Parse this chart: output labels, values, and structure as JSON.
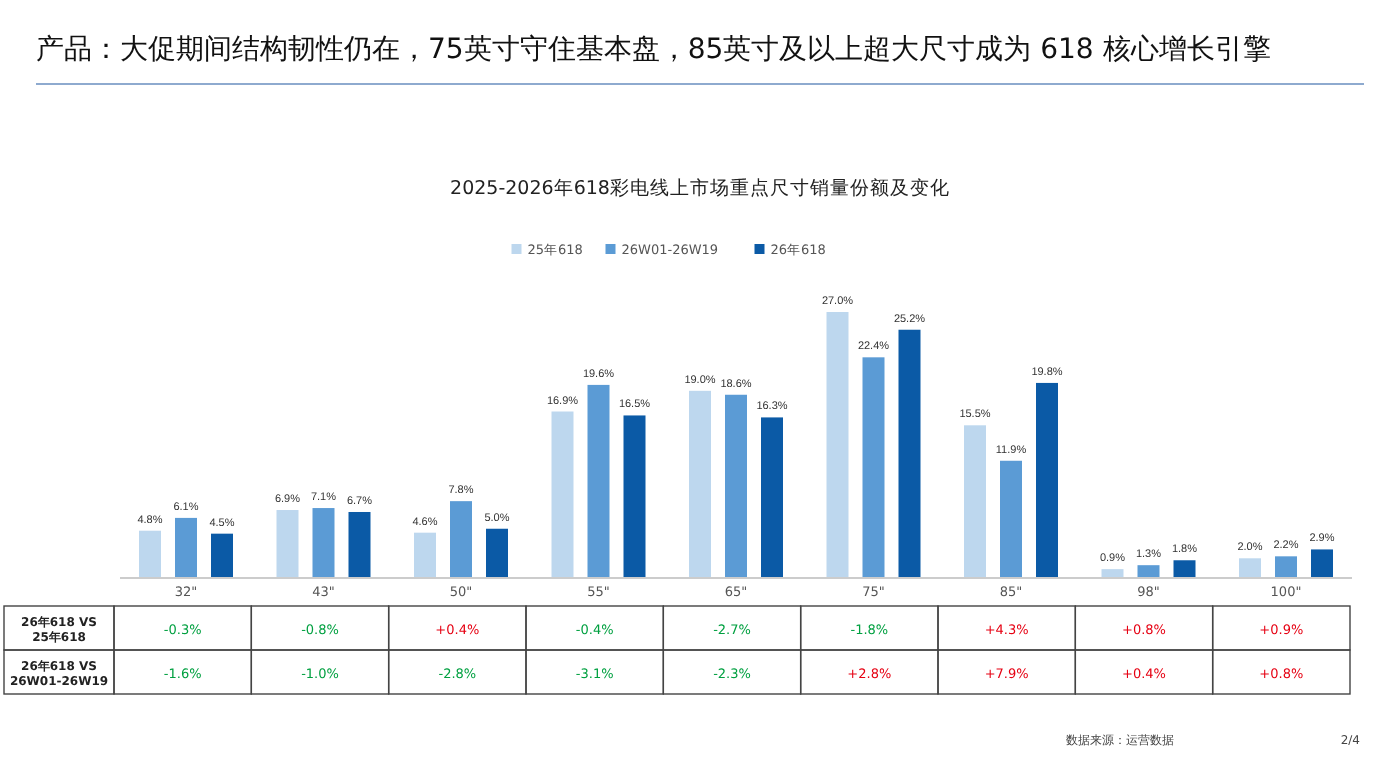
{
  "chart_data": {
    "type": "bar",
    "title": "产品：大促期间结构韧性仍在，75英寸守住基本盘，85英寸及以上超大尺寸成为 618 核心增长引擎",
    "subtitle": "2025-2026年618彩电线上市场重点尺寸销量份额及变化",
    "categories": [
      "32\"",
      "43\"",
      "50\"",
      "55\"",
      "65\"",
      "75\"",
      "85\"",
      "98\"",
      "100\""
    ],
    "series": [
      {
        "name": "25年618",
        "color": "#bdd7ee",
        "values": [
          4.8,
          6.9,
          4.6,
          16.9,
          19.0,
          27.0,
          15.5,
          0.9,
          2.0
        ],
        "value_labels": [
          "4.8%",
          "6.9%",
          "4.6%",
          "16.9%",
          "19.0%",
          "27.0%",
          "15.5%",
          "0.9%",
          "2.0%"
        ]
      },
      {
        "name": "26W01-26W19",
        "color": "#5b9bd5",
        "values": [
          6.1,
          7.1,
          7.8,
          19.6,
          18.6,
          22.4,
          11.9,
          1.3,
          2.2
        ],
        "value_labels": [
          "6.1%",
          "7.1%",
          "7.8%",
          "19.6%",
          "18.6%",
          "22.4%",
          "11.9%",
          "1.3%",
          "2.2%"
        ]
      },
      {
        "name": "26年618",
        "color": "#0b5aa6",
        "values": [
          4.5,
          6.7,
          5.0,
          16.5,
          16.3,
          25.2,
          19.8,
          1.8,
          2.9
        ],
        "value_labels": [
          "4.5%",
          "6.7%",
          "5.0%",
          "16.5%",
          "16.3%",
          "25.2%",
          "19.8%",
          "1.8%",
          "2.9%"
        ]
      }
    ],
    "legend": "top",
    "annotations": [
      "26年618 VS 25年618",
      "-0.3%",
      "-0.8%",
      "+0.4%",
      "-0.4%",
      "-2.7%",
      "-1.8%",
      "+4.3%",
      "+0.8%",
      "+0.9%",
      "26年618 VS 26W01-26W19",
      "-1.6%",
      "-1.0%",
      "-2.8%",
      "-3.1%",
      "-2.3%",
      "+2.8%",
      "+7.9%",
      "+0.4%",
      "+0.8%",
      "数据来源：运营数据",
      "2/4"
    ]
  }
}
